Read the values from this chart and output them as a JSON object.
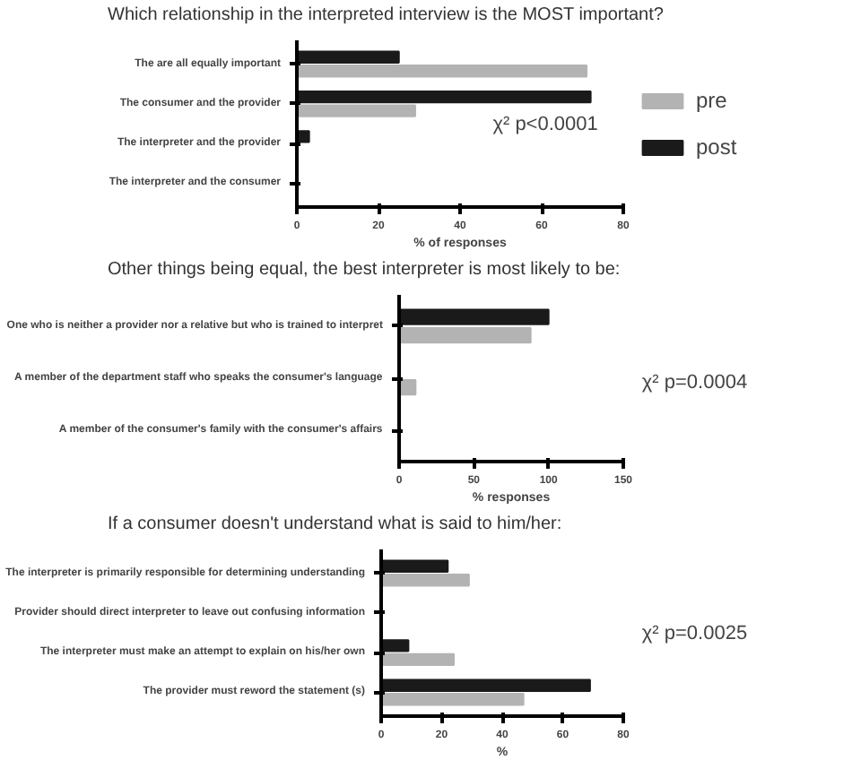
{
  "chart_data": [
    {
      "type": "bar",
      "orientation": "horizontal",
      "title": "Which relationship in the interpreted interview is the MOST important?",
      "xlabel": "% of responses",
      "categories": [
        "The are all equally important",
        "The consumer and the provider",
        "The interpreter and the provider",
        "The interpreter and the consumer"
      ],
      "series": [
        {
          "name": "pre",
          "color": "#b3b3b3",
          "values": [
            71,
            29,
            0,
            0
          ]
        },
        {
          "name": "post",
          "color": "#1a1a1a",
          "values": [
            25,
            72,
            3,
            0
          ]
        }
      ],
      "xlim": [
        0,
        80
      ],
      "xticks": [
        0,
        20,
        40,
        60,
        80
      ],
      "grid": false,
      "legend": "right",
      "annotations": [
        "χ² p<0.0001"
      ]
    },
    {
      "type": "bar",
      "orientation": "horizontal",
      "title": "Other things being equal, the best interpreter is most likely to be:",
      "xlabel": "% responses",
      "categories": [
        "One who is neither a provider nor a relative but who is trained to interpret",
        "A member of the department staff who speaks the consumer's language",
        "A member of the consumer's family with the consumer's affairs"
      ],
      "series": [
        {
          "color": "#b3b3b3",
          "values": [
            88,
            11,
            0
          ]
        },
        {
          "color": "#1a1a1a",
          "values": [
            100,
            0,
            0
          ]
        }
      ],
      "xlim": [
        0,
        150
      ],
      "xticks": [
        0,
        50,
        100,
        150
      ],
      "grid": false,
      "annotations": [
        "χ² p=0.0004"
      ]
    },
    {
      "type": "bar",
      "orientation": "horizontal",
      "title": "If a consumer doesn't understand what is said to him/her:",
      "xlabel": "%",
      "categories": [
        "The interpreter is primarily responsible for determining understanding",
        "Provider should direct interpreter to leave out confusing information",
        "The interpreter must make an attempt to explain on his/her own",
        "The provider must reword the statement (s)"
      ],
      "series": [
        {
          "color": "#b3b3b3",
          "values": [
            29,
            0,
            24,
            47
          ]
        },
        {
          "color": "#1a1a1a",
          "values": [
            22,
            0,
            9,
            69
          ]
        }
      ],
      "xlim": [
        0,
        80
      ],
      "xticks": [
        0,
        20,
        40,
        60,
        80
      ],
      "grid": false,
      "annotations": [
        "χ² p=0.0025"
      ]
    }
  ]
}
